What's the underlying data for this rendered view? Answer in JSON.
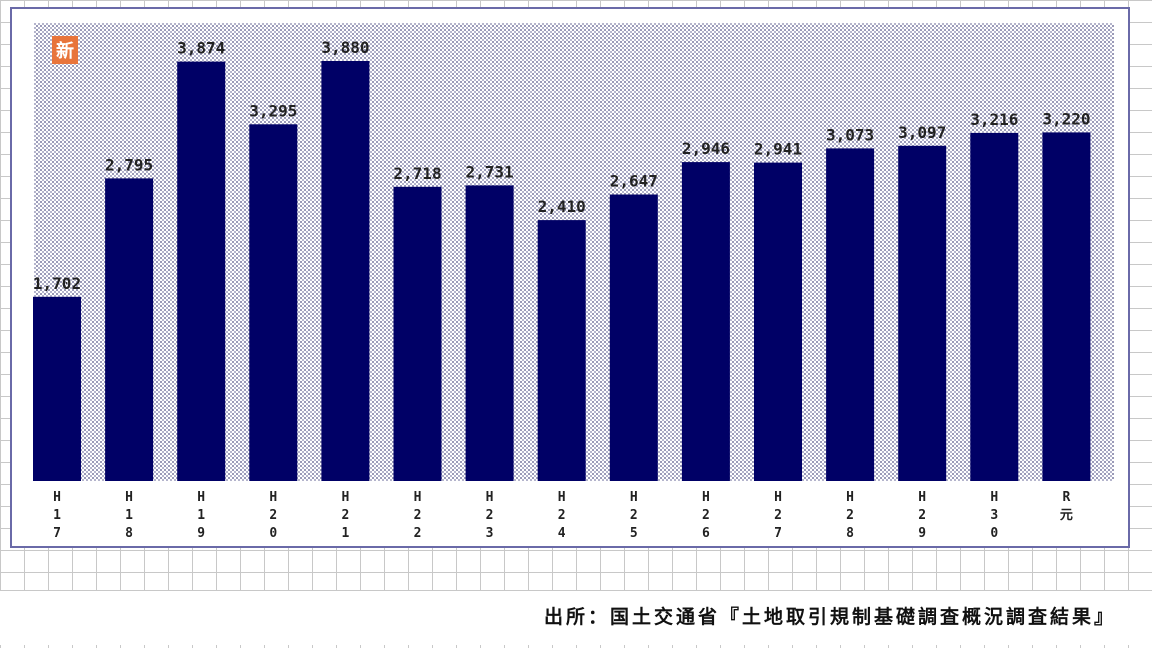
{
  "badge": {
    "text": "新",
    "color": "#e8743b"
  },
  "colors": {
    "bar": "#000066",
    "frame": "#6a6aa8",
    "plot_dots": "#9a9ab8"
  },
  "source": {
    "text": "出所：国土交通省『土地取引規制基礎調査概況調査結果』"
  },
  "chart_data": {
    "type": "bar",
    "categories": [
      "H17",
      "H18",
      "H19",
      "H20",
      "H21",
      "H22",
      "H23",
      "H24",
      "H25",
      "H26",
      "H27",
      "H28",
      "H29",
      "H30",
      "R元"
    ],
    "category_lines": [
      [
        "H",
        "1",
        "7"
      ],
      [
        "H",
        "1",
        "8"
      ],
      [
        "H",
        "1",
        "9"
      ],
      [
        "H",
        "2",
        "0"
      ],
      [
        "H",
        "2",
        "1"
      ],
      [
        "H",
        "2",
        "2"
      ],
      [
        "H",
        "2",
        "3"
      ],
      [
        "H",
        "2",
        "4"
      ],
      [
        "H",
        "2",
        "5"
      ],
      [
        "H",
        "2",
        "6"
      ],
      [
        "H",
        "2",
        "7"
      ],
      [
        "H",
        "2",
        "8"
      ],
      [
        "H",
        "2",
        "9"
      ],
      [
        "H",
        "3",
        "0"
      ],
      [
        "R",
        "元"
      ]
    ],
    "values": [
      1702,
      2795,
      3874,
      3295,
      3880,
      2718,
      2731,
      2410,
      2647,
      2946,
      2941,
      3073,
      3097,
      3216,
      3220
    ],
    "labels": [
      "1,702",
      "2,795",
      "3,874",
      "3,295",
      "3,880",
      "2,718",
      "2,731",
      "2,410",
      "2,647",
      "2,946",
      "2,941",
      "3,073",
      "3,097",
      "3,216",
      "3,220"
    ],
    "title": "",
    "xlabel": "",
    "ylabel": "",
    "ylim": [
      0,
      3880
    ],
    "grid": false,
    "legend": "none"
  }
}
